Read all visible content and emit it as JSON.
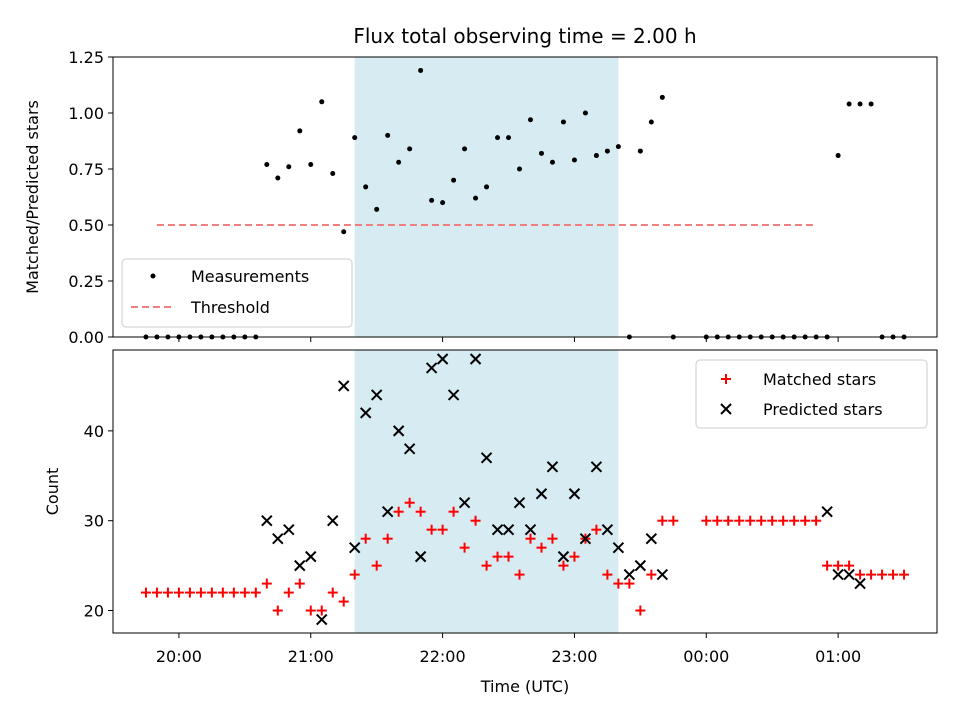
{
  "chart_data": [
    {
      "type": "scatter",
      "title": "Flux total observing time = 2.00 h",
      "xlabel": "",
      "ylabel": "Matched/Predicted stars",
      "ylim": [
        0,
        1.25
      ],
      "yticks": [
        "0.00",
        "0.25",
        "0.50",
        "0.75",
        "1.00",
        "1.25"
      ],
      "grid": false,
      "legend_position": "lower-left",
      "shaded_region": {
        "x_start": "21:20",
        "x_end": "23:20",
        "color": "#add8e6"
      },
      "threshold": {
        "name": "Threshold",
        "value": 0.5,
        "x_start": "19:50",
        "x_end": "00:50",
        "color": "#f08080"
      },
      "series": [
        {
          "name": "Measurements",
          "color": "#000000",
          "x": [
            "19:45",
            "19:50",
            "19:55",
            "20:00",
            "20:05",
            "20:10",
            "20:15",
            "20:20",
            "20:25",
            "20:30",
            "20:35",
            "20:40",
            "20:45",
            "20:50",
            "20:55",
            "21:00",
            "21:05",
            "21:10",
            "21:15",
            "21:20",
            "21:25",
            "21:30",
            "21:35",
            "21:40",
            "21:45",
            "21:50",
            "21:55",
            "22:00",
            "22:05",
            "22:10",
            "22:15",
            "22:20",
            "22:25",
            "22:30",
            "22:35",
            "22:40",
            "22:45",
            "22:50",
            "22:55",
            "23:00",
            "23:05",
            "23:10",
            "23:15",
            "23:20",
            "23:25",
            "23:30",
            "23:35",
            "23:40",
            "23:45",
            "00:00",
            "00:05",
            "00:10",
            "00:15",
            "00:20",
            "00:25",
            "00:30",
            "00:35",
            "00:40",
            "00:45",
            "00:50",
            "00:55",
            "01:00",
            "01:05",
            "01:10",
            "01:15",
            "01:20",
            "01:25",
            "01:30"
          ],
          "y": [
            0,
            0,
            0,
            0,
            0,
            0,
            0,
            0,
            0,
            0,
            0,
            0.77,
            0.71,
            0.76,
            0.92,
            0.77,
            1.05,
            0.73,
            0.47,
            0.89,
            0.67,
            0.57,
            0.9,
            0.78,
            0.84,
            1.19,
            0.61,
            0.6,
            0.7,
            0.84,
            0.62,
            0.67,
            0.89,
            0.89,
            0.75,
            0.97,
            0.82,
            0.78,
            0.96,
            0.79,
            1.0,
            0.81,
            0.83,
            0.85,
            0,
            0.83,
            0.96,
            1.07,
            0,
            0,
            0,
            0,
            0,
            0,
            0,
            0,
            0,
            0,
            0,
            0,
            0,
            0.81,
            1.04,
            1.04,
            1.04,
            0,
            0,
            0
          ]
        }
      ]
    },
    {
      "type": "scatter",
      "title": "",
      "xlabel": "Time (UTC)",
      "ylabel": "Count",
      "ylim": [
        17.5,
        49
      ],
      "yticks": [
        "20",
        "30",
        "40"
      ],
      "xlim": [
        "19:30",
        "01:45"
      ],
      "xticks": [
        "20:00",
        "21:00",
        "22:00",
        "23:00",
        "00:00",
        "01:00"
      ],
      "grid": false,
      "legend_position": "upper-right",
      "shaded_region": {
        "x_start": "21:20",
        "x_end": "23:20",
        "color": "#add8e6"
      },
      "series": [
        {
          "name": "Matched stars",
          "color": "#ff0000",
          "marker": "plus",
          "x": [
            "19:45",
            "19:50",
            "19:55",
            "20:00",
            "20:05",
            "20:10",
            "20:15",
            "20:20",
            "20:25",
            "20:30",
            "20:35",
            "20:40",
            "20:45",
            "20:50",
            "20:55",
            "21:00",
            "21:05",
            "21:10",
            "21:15",
            "21:20",
            "21:25",
            "21:30",
            "21:35",
            "21:40",
            "21:45",
            "21:50",
            "21:55",
            "22:00",
            "22:05",
            "22:10",
            "22:15",
            "22:20",
            "22:25",
            "22:30",
            "22:35",
            "22:40",
            "22:45",
            "22:50",
            "22:55",
            "23:00",
            "23:05",
            "23:10",
            "23:15",
            "23:20",
            "23:25",
            "23:30",
            "23:35",
            "23:40",
            "23:45",
            "00:00",
            "00:05",
            "00:10",
            "00:15",
            "00:20",
            "00:25",
            "00:30",
            "00:35",
            "00:40",
            "00:45",
            "00:50",
            "00:55",
            "01:00",
            "01:05",
            "01:10",
            "01:15",
            "01:20",
            "01:25",
            "01:30"
          ],
          "y": [
            22,
            22,
            22,
            22,
            22,
            22,
            22,
            22,
            22,
            22,
            22,
            23,
            20,
            22,
            23,
            20,
            20,
            22,
            21,
            24,
            28,
            25,
            28,
            31,
            32,
            31,
            29,
            29,
            31,
            27,
            30,
            25,
            26,
            26,
            24,
            28,
            27,
            28,
            25,
            26,
            28,
            29,
            24,
            23,
            23,
            20,
            24,
            30,
            30,
            30,
            30,
            30,
            30,
            30,
            30,
            30,
            30,
            30,
            30,
            30,
            25,
            25,
            25,
            24,
            24,
            24,
            24,
            24
          ]
        },
        {
          "name": "Predicted stars",
          "color": "#000000",
          "marker": "x",
          "x": [
            "20:40",
            "20:45",
            "20:50",
            "20:55",
            "21:00",
            "21:05",
            "21:10",
            "21:15",
            "21:20",
            "21:25",
            "21:30",
            "21:35",
            "21:40",
            "21:45",
            "21:50",
            "21:55",
            "22:00",
            "22:05",
            "22:10",
            "22:15",
            "22:20",
            "22:25",
            "22:30",
            "22:35",
            "22:40",
            "22:45",
            "22:50",
            "22:55",
            "23:00",
            "23:05",
            "23:10",
            "23:15",
            "23:20",
            "23:25",
            "23:30",
            "23:35",
            "23:40",
            "00:55",
            "01:00",
            "01:05",
            "01:10"
          ],
          "y": [
            30,
            28,
            29,
            25,
            26,
            19,
            30,
            45,
            27,
            42,
            44,
            31,
            40,
            38,
            26,
            47,
            48,
            44,
            32,
            48,
            37,
            29,
            29,
            32,
            29,
            33,
            36,
            26,
            33,
            28,
            36,
            29,
            27,
            24,
            25,
            28,
            24,
            31,
            24,
            24,
            23
          ]
        }
      ]
    }
  ]
}
